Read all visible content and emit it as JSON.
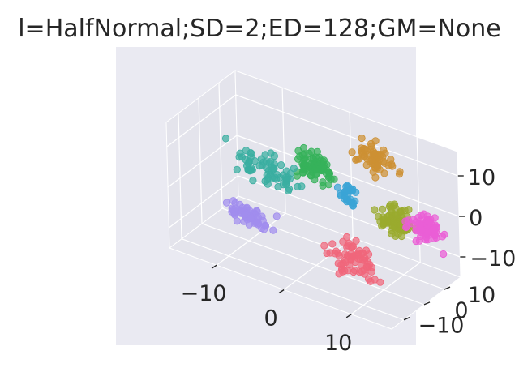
{
  "title": "l=HalfNormal;SD=2;ED=128;GM=None",
  "chart_data": {
    "type": "scatter",
    "projection": "3d",
    "title": "l=HalfNormal;SD=2;ED=128;GM=None",
    "xlabel": "",
    "ylabel": "",
    "zlabel": "",
    "xlim": [
      -17,
      16
    ],
    "ylim": [
      -16,
      18
    ],
    "zlim": [
      -15,
      16
    ],
    "x_ticks": [
      -10,
      0,
      10
    ],
    "y_ticks": [
      -10,
      0,
      10
    ],
    "z_ticks": [
      -10,
      0,
      10
    ],
    "x_tick_labels": [
      "−10",
      "0",
      "10"
    ],
    "y_tick_labels": [
      "−10",
      "0",
      "10"
    ],
    "z_tick_labels": [
      "−10",
      "0",
      "10"
    ],
    "grid": true,
    "legend": "none",
    "series": [
      {
        "color": "#f0677b",
        "center": [
          6,
          -2,
          -9
        ],
        "spread": [
          3.0,
          2.5,
          2.6
        ],
        "points": 70
      },
      {
        "color": "#cd9033",
        "center": [
          7,
          7,
          13
        ],
        "spread": [
          2.0,
          2.0,
          2.4
        ],
        "points": 60
      },
      {
        "color": "#9aab2e",
        "center": [
          12,
          0,
          3
        ],
        "spread": [
          1.8,
          1.8,
          2.3
        ],
        "points": 80
      },
      {
        "color": "#36b25a",
        "center": [
          -2,
          6,
          6
        ],
        "spread": [
          2.0,
          2.0,
          2.3
        ],
        "points": 80
      },
      {
        "color": "#3aaea1",
        "center": [
          -8,
          3,
          3
        ],
        "spread": [
          3.5,
          2.0,
          2.4
        ],
        "points": 70
      },
      {
        "color": "#3aa4d6",
        "center": [
          4,
          3,
          4
        ],
        "spread": [
          1.0,
          1.0,
          2.3
        ],
        "points": 30
      },
      {
        "color": "#a18dee",
        "center": [
          -8,
          -5,
          -6
        ],
        "spread": [
          3.0,
          1.5,
          1.3
        ],
        "points": 70
      },
      {
        "color": "#ea5ed6",
        "center": [
          16,
          2,
          3
        ],
        "spread": [
          2.0,
          1.8,
          2.0
        ],
        "points": 80
      }
    ]
  }
}
